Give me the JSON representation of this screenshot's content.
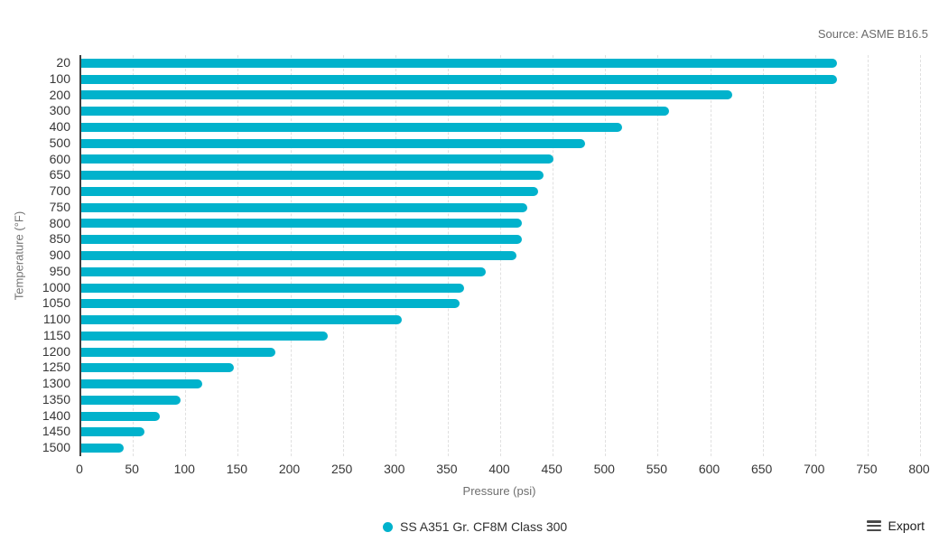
{
  "header": {
    "source": "Source: ASME B16.5"
  },
  "chart_data": {
    "type": "bar",
    "orientation": "horizontal",
    "categories": [
      "20",
      "100",
      "200",
      "300",
      "400",
      "500",
      "600",
      "650",
      "700",
      "750",
      "800",
      "850",
      "900",
      "950",
      "1000",
      "1050",
      "1100",
      "1150",
      "1200",
      "1250",
      "1300",
      "1350",
      "1400",
      "1450",
      "1500"
    ],
    "values": [
      720,
      720,
      620,
      560,
      515,
      480,
      450,
      440,
      435,
      425,
      420,
      420,
      415,
      385,
      365,
      360,
      305,
      235,
      185,
      145,
      115,
      95,
      75,
      60,
      40
    ],
    "series": [
      {
        "name": "SS A351 Gr. CF8M Class 300",
        "values": [
          720,
          720,
          620,
          560,
          515,
          480,
          450,
          440,
          435,
          425,
          420,
          420,
          415,
          385,
          365,
          360,
          305,
          235,
          185,
          145,
          115,
          95,
          75,
          60,
          40
        ]
      }
    ],
    "xlabel": "Pressure (psi)",
    "ylabel": "Temperature (°F)",
    "xlim": [
      0,
      800
    ],
    "x_tick_step": 50,
    "grid": "vertical-dashed",
    "legend_position": "bottom-center",
    "bar_color": "#00b2cc"
  },
  "legend": {
    "label": "SS A351 Gr. CF8M Class 300",
    "marker_color": "#00b2cc"
  },
  "toolbar": {
    "export_label": "Export"
  }
}
